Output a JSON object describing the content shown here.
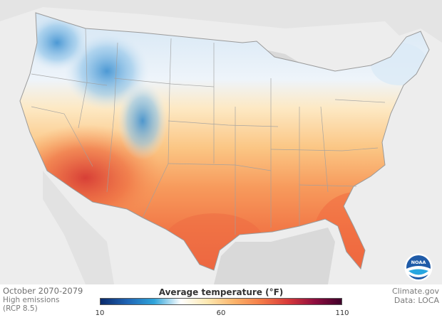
{
  "map": {
    "period": "October 2070-2079",
    "scenario_line1": "High emissions",
    "scenario_line2": "(RCP 8.5)",
    "source_line1": "Climate.gov",
    "source_line2": "Data: LOCA"
  },
  "legend": {
    "title": "Average temperature (°F)",
    "min_label": "10",
    "mid_label": "60",
    "max_label": "110",
    "min_value": 10,
    "mid_value": 60,
    "max_value": 110,
    "colors": [
      "#0b2a6b",
      "#1f64b4",
      "#2fa4da",
      "#ffffff",
      "#fde8b0",
      "#fbb36a",
      "#f47b47",
      "#d8393a",
      "#8e0d3f",
      "#3f002a"
    ]
  },
  "logo": {
    "text": "NOAA",
    "icon": "noaa-logo-icon"
  },
  "colors": {
    "land": "#ededed",
    "water": "#d9d9d9",
    "borders": "#a0a0a0"
  }
}
